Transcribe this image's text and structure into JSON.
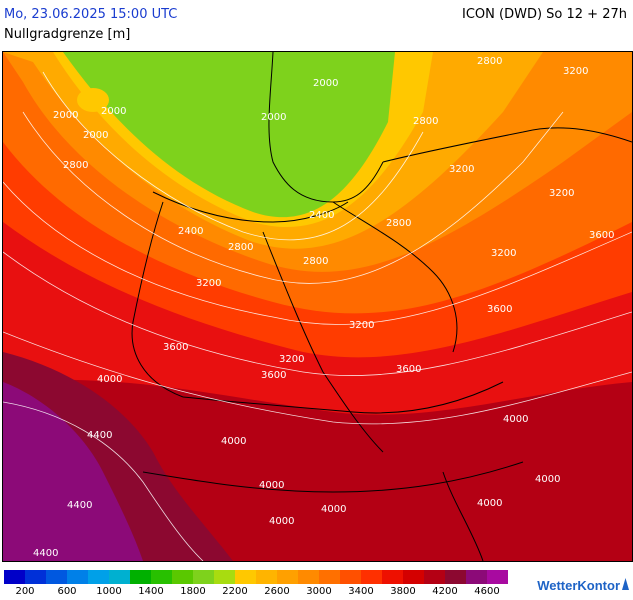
{
  "header": {
    "datetime": "Mo, 23.06.2025 15:00 UTC",
    "subtitle": "Nullgradgrenze [m]",
    "model": "ICON (DWD) So 12 + 27h"
  },
  "map": {
    "contour_labels": [
      "2000",
      "2000",
      "2000",
      "2000",
      "2000",
      "2400",
      "2400",
      "2800",
      "2800",
      "2800",
      "2800",
      "2800",
      "2800",
      "3200",
      "3200",
      "3200",
      "3200",
      "3200",
      "3200",
      "3200",
      "3600",
      "3600",
      "3600",
      "3600",
      "3600",
      "4000",
      "4000",
      "4000",
      "4000",
      "4000",
      "4000",
      "4000",
      "4000",
      "4400",
      "4400",
      "4400"
    ],
    "region_colors": {
      "green_light": "#7ed21c",
      "yellow": "#ffc800",
      "orange_light": "#ffaa00",
      "orange": "#ff8a00",
      "orange_dark": "#ff6a00",
      "red_orange": "#ff3c00",
      "red": "#e81010",
      "dark_red": "#b40014",
      "maroon": "#8c0830",
      "purple": "#8c0a78"
    }
  },
  "legend": {
    "colors": [
      "#0000c8",
      "#0030d8",
      "#0058e0",
      "#0080e8",
      "#00a0e8",
      "#00b0d0",
      "#00b000",
      "#28c000",
      "#5ac800",
      "#7ed21c",
      "#a8dc10",
      "#ffc800",
      "#ffb400",
      "#ffa000",
      "#ff8a00",
      "#ff7000",
      "#ff5000",
      "#ff3000",
      "#ee1000",
      "#d40000",
      "#b40014",
      "#8c0830",
      "#8c0a78",
      "#a80aa0"
    ],
    "labels": [
      "200",
      "600",
      "1000",
      "1400",
      "1800",
      "2200",
      "2600",
      "3000",
      "3400",
      "3800",
      "4200",
      "4600"
    ]
  },
  "brand": {
    "name": "WetterKontor"
  }
}
